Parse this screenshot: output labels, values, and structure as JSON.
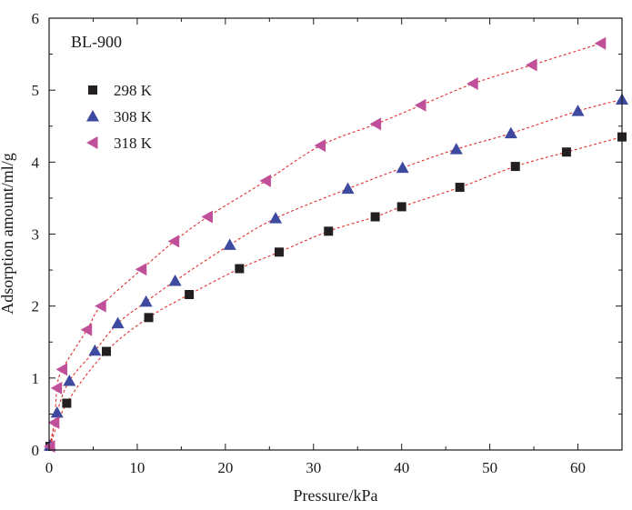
{
  "chart_data": {
    "type": "scatter",
    "title": "BL-900",
    "xlabel": "Pressure/kPa",
    "ylabel": "Adsorption amount/ml/g",
    "xlim": [
      0,
      65
    ],
    "ylim": [
      0,
      6
    ],
    "xticks": [
      0,
      10,
      20,
      30,
      40,
      50,
      60
    ],
    "yticks": [
      0,
      1,
      2,
      3,
      4,
      5,
      6
    ],
    "grid": false,
    "legend_position": "top-left",
    "fit_line_color": "#e03030",
    "series": [
      {
        "name": "298 K",
        "marker": "square",
        "color": "#231f20",
        "x": [
          0.1,
          2.0,
          6.5,
          11.3,
          15.9,
          21.6,
          26.1,
          31.7,
          37.0,
          40.0,
          46.6,
          52.9,
          58.7,
          65.0
        ],
        "y": [
          0.05,
          0.65,
          1.37,
          1.84,
          2.16,
          2.52,
          2.75,
          3.04,
          3.24,
          3.38,
          3.65,
          3.94,
          4.14,
          4.35
        ]
      },
      {
        "name": "308 K",
        "marker": "triangle-up",
        "color": "#3d4aa0",
        "x": [
          0.1,
          0.9,
          2.3,
          5.2,
          7.8,
          11.0,
          14.3,
          20.5,
          25.7,
          33.9,
          40.1,
          46.2,
          52.4,
          60.0,
          65.0
        ],
        "y": [
          0.06,
          0.52,
          0.96,
          1.38,
          1.76,
          2.06,
          2.35,
          2.85,
          3.22,
          3.63,
          3.92,
          4.18,
          4.4,
          4.71,
          4.87
        ]
      },
      {
        "name": "318 K",
        "marker": "triangle-left",
        "color": "#c0509a",
        "x": [
          0.1,
          0.6,
          0.9,
          1.5,
          4.3,
          5.9,
          10.5,
          14.2,
          18.0,
          24.6,
          30.8,
          37.1,
          42.2,
          48.1,
          54.8,
          62.6
        ],
        "y": [
          0.05,
          0.38,
          0.86,
          1.12,
          1.67,
          2.0,
          2.51,
          2.9,
          3.24,
          3.74,
          4.23,
          4.53,
          4.79,
          5.09,
          5.35,
          5.65
        ]
      }
    ]
  }
}
